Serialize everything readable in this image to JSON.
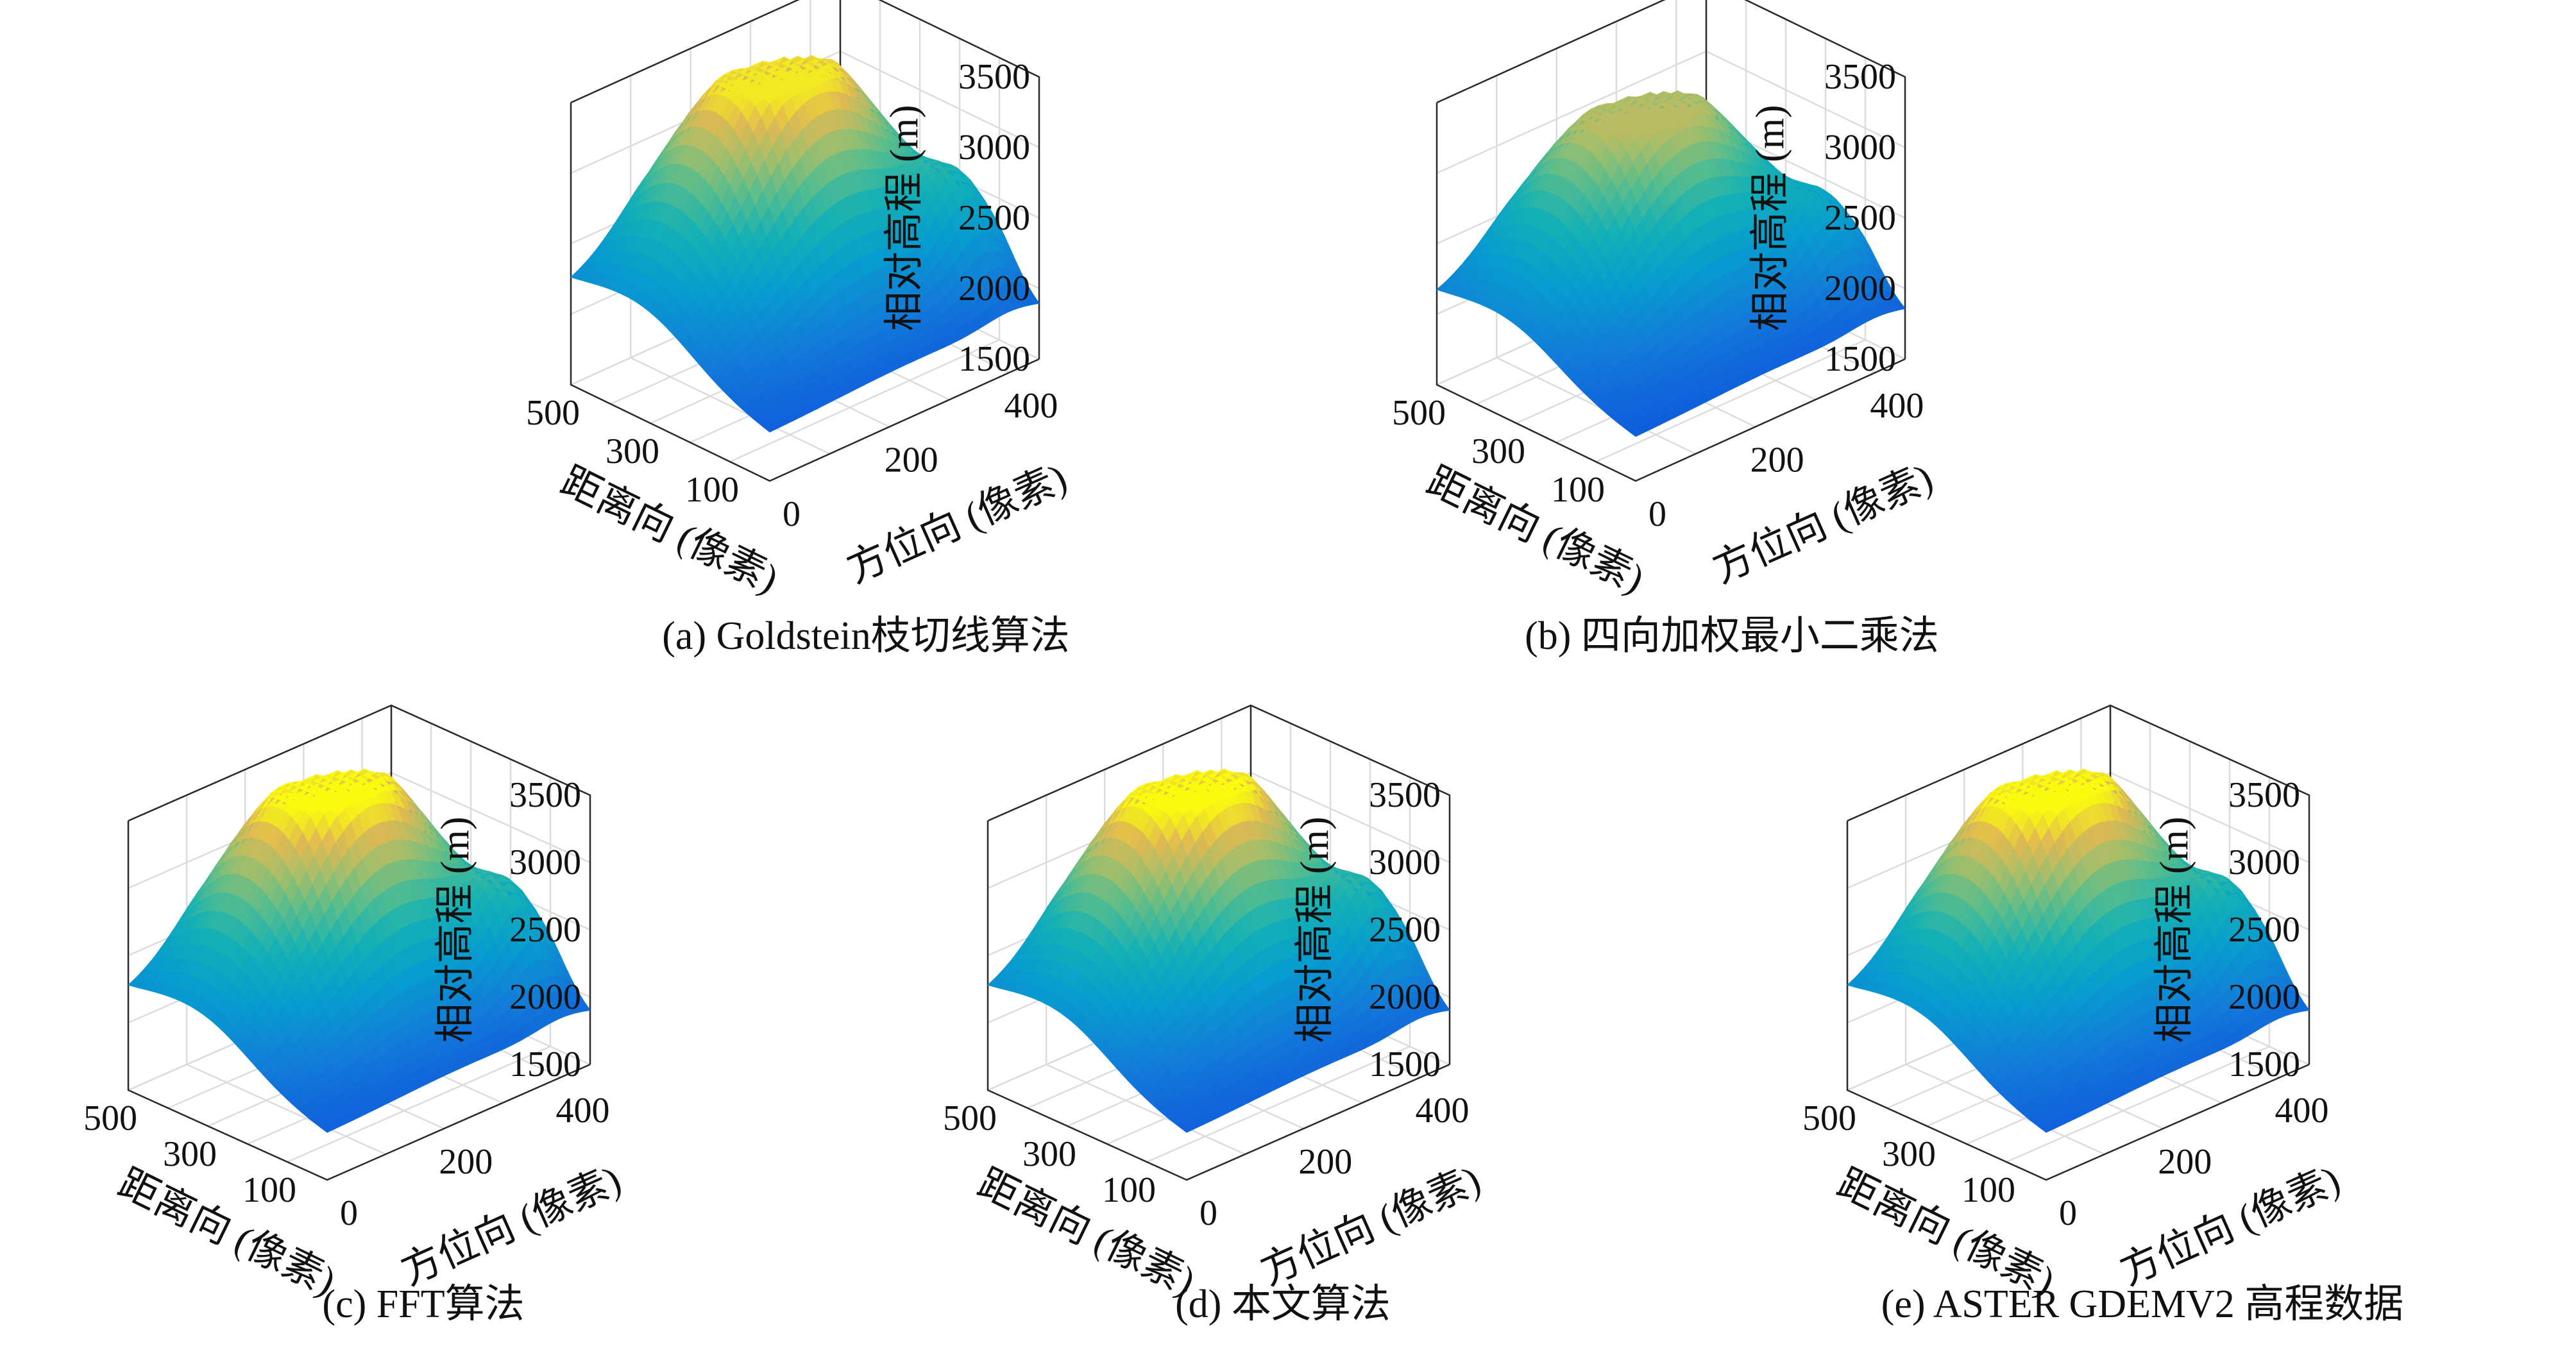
{
  "panels": [
    {
      "caption": "(a) Goldstein枝切线算法"
    },
    {
      "caption": "(b) 四向加权最小二乘法"
    },
    {
      "caption": "(c) FFT算法"
    },
    {
      "caption": "(d) 本文算法"
    },
    {
      "caption": "(e)  ASTER GDEMV2 高程数据"
    }
  ],
  "chart_data": [
    {
      "type": "surface",
      "title": "",
      "zlabel": "相对高程 (m)",
      "xlabel": "距离向 (像素)",
      "ylabel": "方位向 (像素)",
      "z_ticks": [
        1500,
        2000,
        2500,
        3000,
        3500
      ],
      "x_ticks": [
        500,
        300,
        100
      ],
      "y_ticks": [
        0,
        200,
        400
      ],
      "zlim": [
        1500,
        3500
      ],
      "xlim": [
        0,
        500
      ],
      "ylim": [
        0,
        450
      ],
      "peak_elevation": 3450,
      "grid": true,
      "colormap": "parula"
    },
    {
      "type": "surface",
      "title": "",
      "zlabel": "相对高程 (m)",
      "xlabel": "距离向 (像素)",
      "ylabel": "方位向 (像素)",
      "z_ticks": [
        1500,
        2000,
        2500,
        3000,
        3500
      ],
      "x_ticks": [
        500,
        300,
        100
      ],
      "y_ticks": [
        0,
        200,
        400
      ],
      "zlim": [
        1500,
        3500
      ],
      "xlim": [
        0,
        500
      ],
      "ylim": [
        0,
        450
      ],
      "peak_elevation": 3200,
      "grid": true,
      "colormap": "parula"
    },
    {
      "type": "surface",
      "title": "",
      "zlabel": "相对高程 (m)",
      "xlabel": "距离向 (像素)",
      "ylabel": "方位向 (像素)",
      "z_ticks": [
        1500,
        2000,
        2500,
        3000,
        3500
      ],
      "x_ticks": [
        500,
        300,
        100
      ],
      "y_ticks": [
        0,
        200,
        400
      ],
      "zlim": [
        1500,
        3500
      ],
      "xlim": [
        0,
        500
      ],
      "ylim": [
        0,
        450
      ],
      "peak_elevation": 3500,
      "grid": true,
      "colormap": "parula"
    },
    {
      "type": "surface",
      "title": "",
      "zlabel": "相对高程 (m)",
      "xlabel": "距离向 (像素)",
      "ylabel": "方位向 (像素)",
      "z_ticks": [
        1500,
        2000,
        2500,
        3000,
        3500
      ],
      "x_ticks": [
        500,
        300,
        100
      ],
      "y_ticks": [
        0,
        200,
        400
      ],
      "zlim": [
        1500,
        3500
      ],
      "xlim": [
        0,
        500
      ],
      "ylim": [
        0,
        450
      ],
      "peak_elevation": 3500,
      "grid": true,
      "colormap": "parula"
    },
    {
      "type": "surface",
      "title": "",
      "zlabel": "相对高程 (m)",
      "xlabel": "距离向 (像素)",
      "ylabel": "方位向 (像素)",
      "z_ticks": [
        1500,
        2000,
        2500,
        3000,
        3500
      ],
      "x_ticks": [
        500,
        300,
        100
      ],
      "y_ticks": [
        0,
        200,
        400
      ],
      "zlim": [
        1500,
        3500
      ],
      "xlim": [
        0,
        500
      ],
      "ylim": [
        0,
        450
      ],
      "peak_elevation": 3500,
      "grid": true,
      "colormap": "parula"
    }
  ]
}
